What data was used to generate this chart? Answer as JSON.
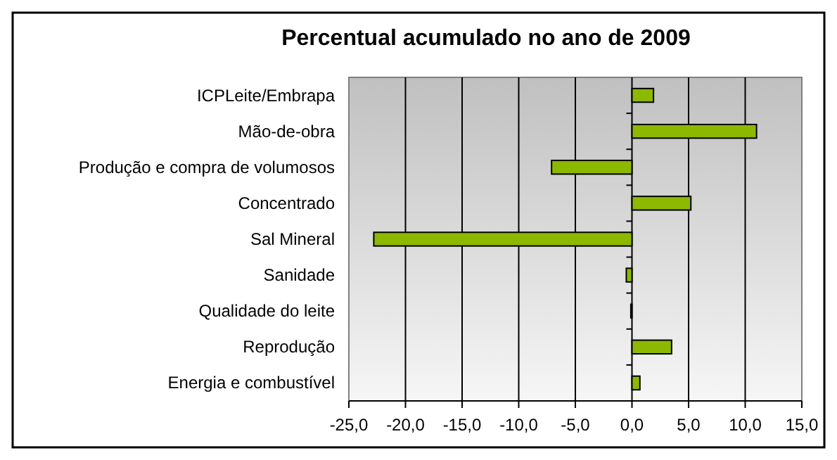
{
  "chart_data": {
    "type": "bar",
    "orientation": "horizontal",
    "title": "Percentual acumulado no ano de 2009",
    "categories": [
      "ICPLeite/Embrapa",
      "Mão-de-obra",
      "Produção e compra de volumosos",
      "Concentrado",
      "Sal Mineral",
      "Sanidade",
      "Qualidade do leite",
      "Reprodução",
      "Energia e combustível"
    ],
    "values": [
      1.9,
      11.0,
      -7.1,
      5.2,
      -22.8,
      -0.5,
      -0.1,
      3.5,
      0.7
    ],
    "color": "#8cb800",
    "xlim": [
      -25,
      15
    ],
    "xticks": [
      {
        "value": -25,
        "label": "-25,0"
      },
      {
        "value": -20,
        "label": "-20,0"
      },
      {
        "value": -15,
        "label": "-15,0"
      },
      {
        "value": -10,
        "label": "-10,0"
      },
      {
        "value": -5,
        "label": "-5,0"
      },
      {
        "value": 0,
        "label": "0,0"
      },
      {
        "value": 5,
        "label": "5,0"
      },
      {
        "value": 10,
        "label": "10,0"
      },
      {
        "value": 15,
        "label": "15,0"
      }
    ],
    "grid": "x"
  }
}
